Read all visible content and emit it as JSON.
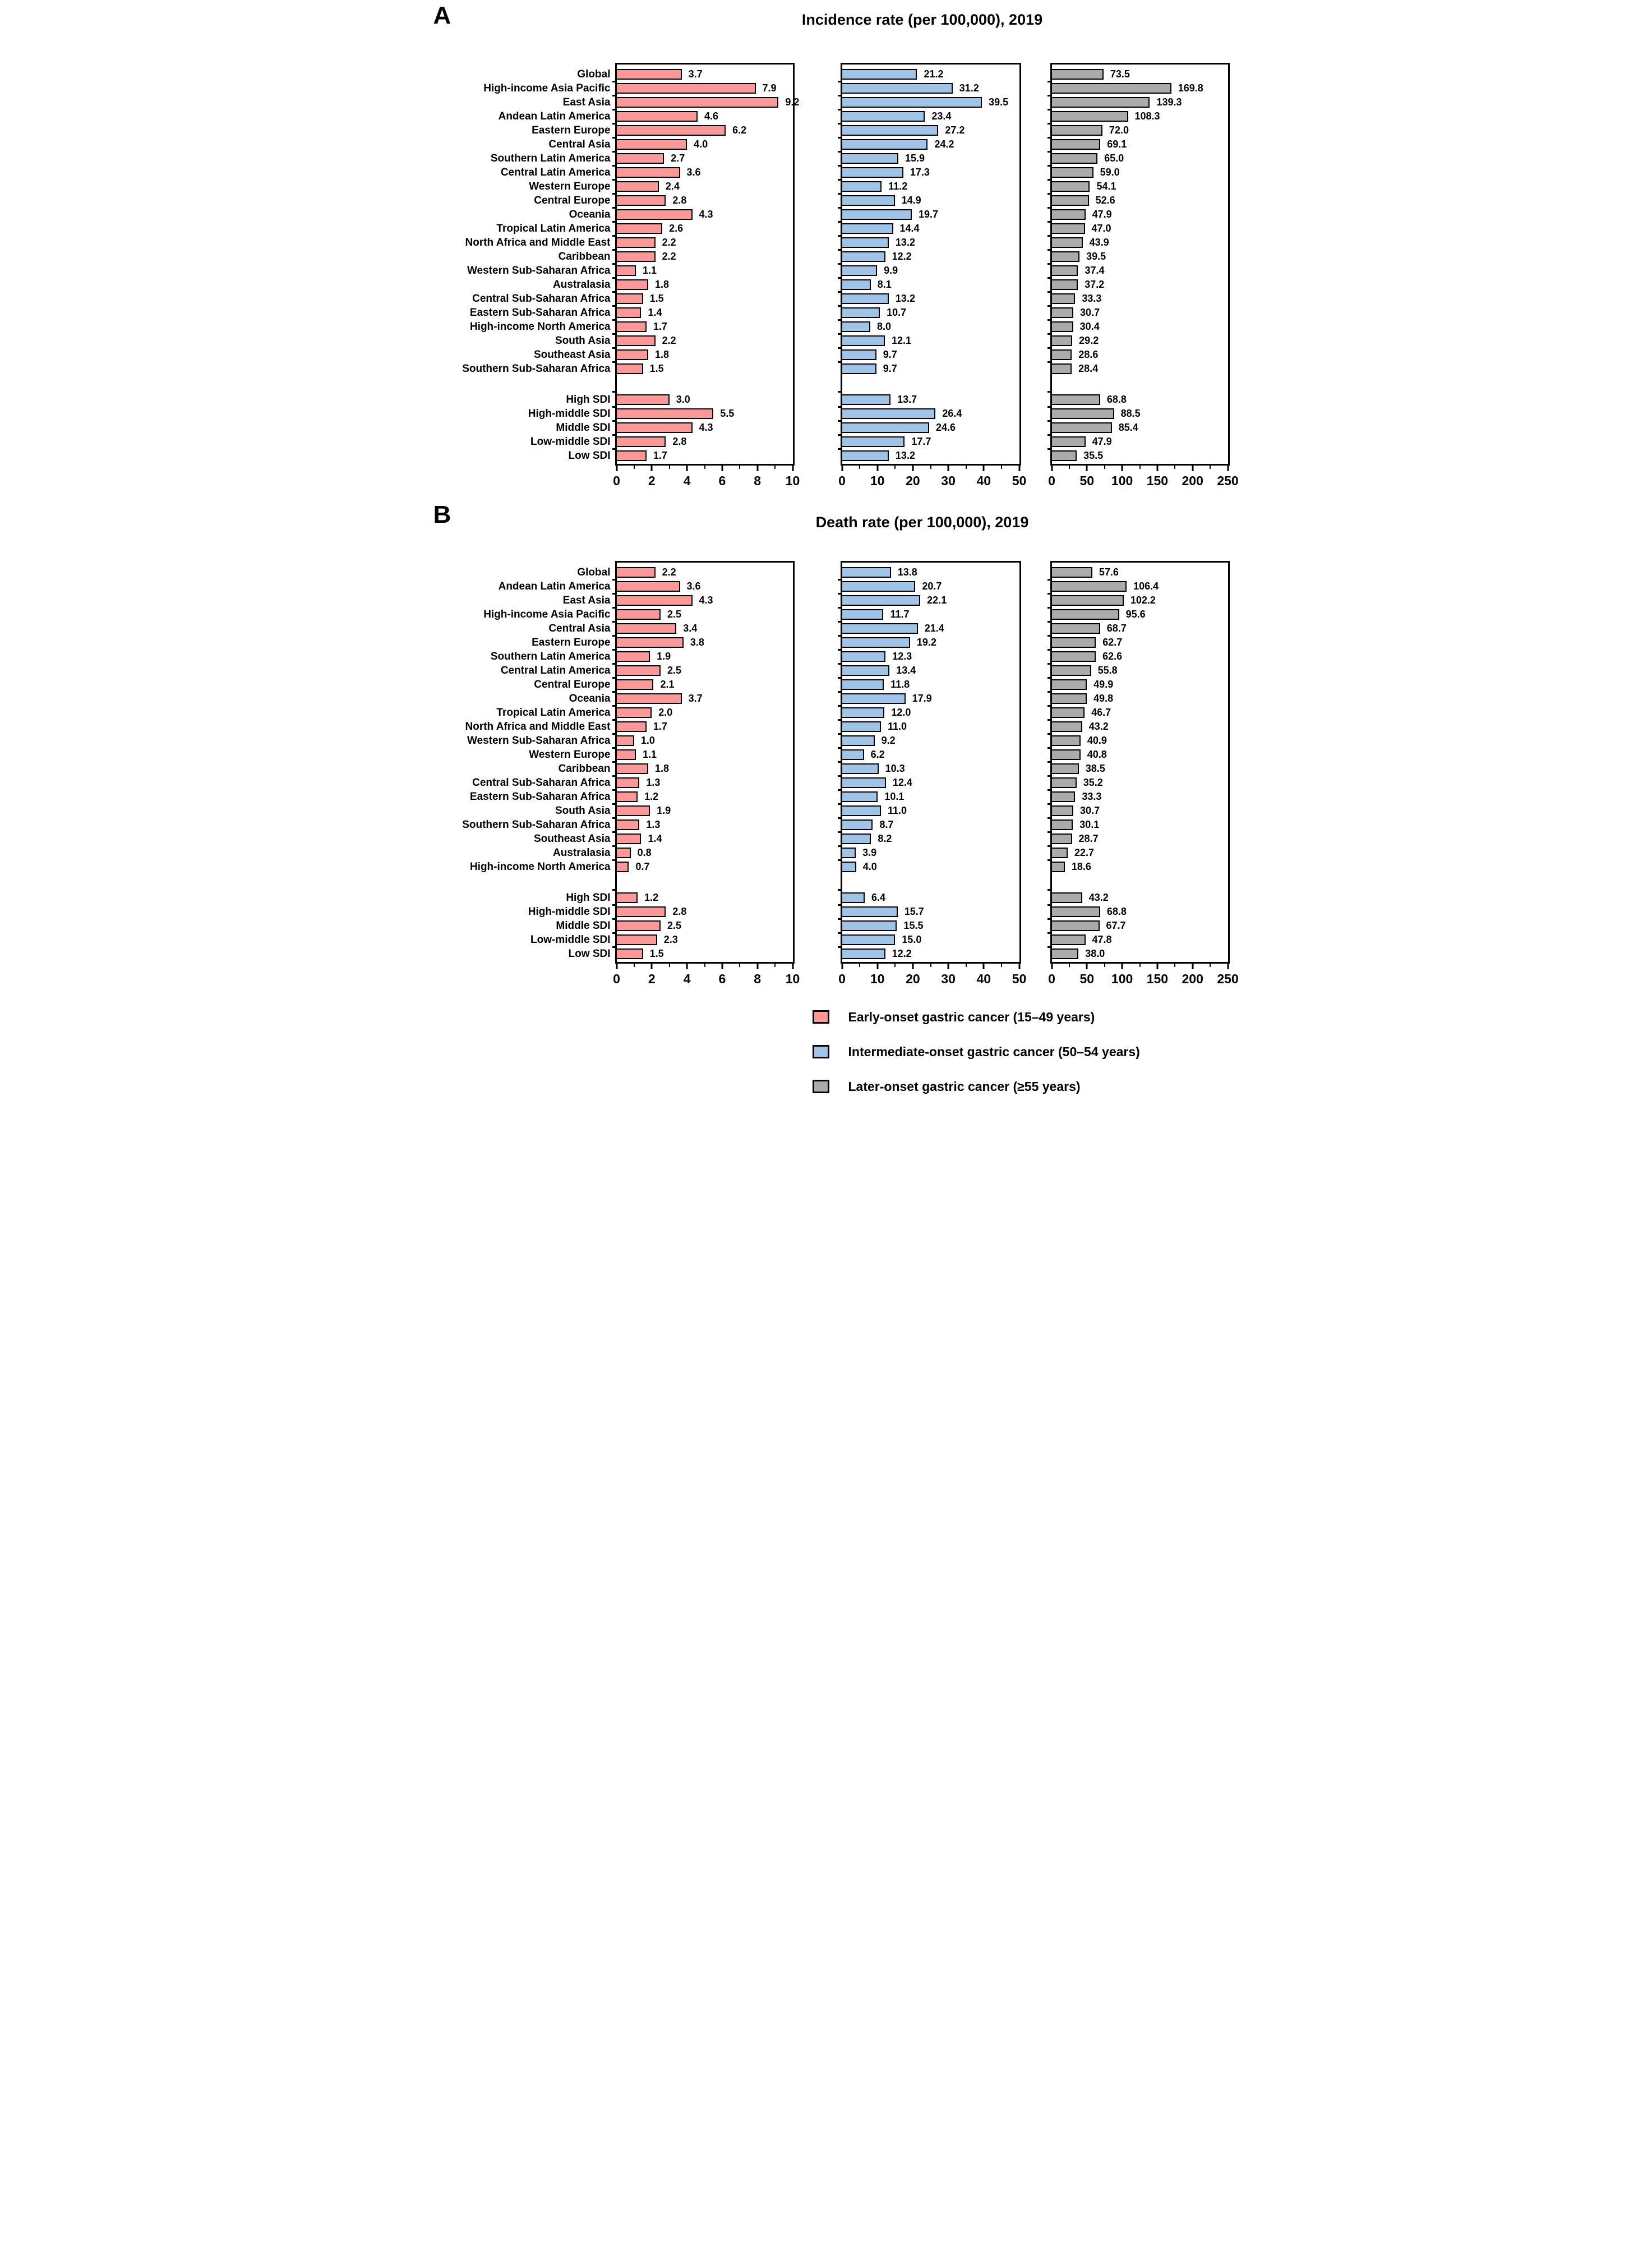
{
  "chart_data": [
    {
      "type": "bar",
      "orientation": "horizontal",
      "panel_label": "A",
      "title": "Incidence rate (per 100,000), 2019",
      "categories_regions": [
        "Global",
        "High-income Asia Pacific",
        "East Asia",
        "Andean Latin America",
        "Eastern Europe",
        "Central Asia",
        "Southern Latin America",
        "Central Latin America",
        "Western Europe",
        "Central Europe",
        "Oceania",
        "Tropical Latin America",
        "North Africa and Middle East",
        "Caribbean",
        "Western Sub-Saharan Africa",
        "Australasia",
        "Central Sub-Saharan Africa",
        "Eastern Sub-Saharan Africa",
        "High-income North America",
        "South Asia",
        "Southeast Asia",
        "Southern Sub-Saharan Africa"
      ],
      "categories_sdi": [
        "High SDI",
        "High-middle SDI",
        "Middle SDI",
        "Low-middle SDI",
        "Low SDI"
      ],
      "series": [
        {
          "name": "Early-onset gastric cancer (15–49 years)",
          "color": "#FD9899",
          "xlim": [
            0,
            10
          ],
          "ticks": [
            0,
            2,
            4,
            6,
            8,
            10
          ],
          "values_regions": [
            3.7,
            7.9,
            9.2,
            4.6,
            6.2,
            4.0,
            2.7,
            3.6,
            2.4,
            2.8,
            4.3,
            2.6,
            2.2,
            2.2,
            1.1,
            1.8,
            1.5,
            1.4,
            1.7,
            2.2,
            1.8,
            1.5
          ],
          "values_sdi": [
            3.0,
            5.5,
            4.3,
            2.8,
            1.7
          ]
        },
        {
          "name": "Intermediate-onset gastric cancer (50–54 years)",
          "color": "#9EC4E8",
          "xlim": [
            0,
            50
          ],
          "ticks": [
            0,
            10,
            20,
            30,
            40,
            50
          ],
          "values_regions": [
            21.2,
            31.2,
            39.5,
            23.4,
            27.2,
            24.2,
            15.9,
            17.3,
            11.2,
            14.9,
            19.7,
            14.4,
            13.2,
            12.2,
            9.9,
            8.1,
            13.2,
            10.7,
            8.0,
            12.1,
            9.7,
            9.7
          ],
          "values_sdi": [
            13.7,
            26.4,
            24.6,
            17.7,
            13.2
          ]
        },
        {
          "name": "Later-onset gastric cancer (≥55 years)",
          "color": "#ABABAB",
          "xlim": [
            0,
            250
          ],
          "ticks": [
            0,
            50,
            100,
            150,
            200,
            250
          ],
          "values_regions": [
            73.5,
            169.8,
            139.3,
            108.3,
            72.0,
            69.1,
            65.0,
            59.0,
            54.1,
            52.6,
            47.9,
            47.0,
            43.9,
            39.5,
            37.4,
            37.2,
            33.3,
            30.7,
            30.4,
            29.2,
            28.6,
            28.4
          ],
          "values_sdi": [
            68.8,
            88.5,
            85.4,
            47.9,
            35.5
          ]
        }
      ]
    },
    {
      "type": "bar",
      "orientation": "horizontal",
      "panel_label": "B",
      "title": "Death rate (per 100,000), 2019",
      "categories_regions": [
        "Global",
        "Andean Latin America",
        "East Asia",
        "High-income Asia Pacific",
        "Central Asia",
        "Eastern Europe",
        "Southern Latin America",
        "Central Latin America",
        "Central Europe",
        "Oceania",
        "Tropical Latin America",
        "North Africa and Middle East",
        "Western Sub-Saharan Africa",
        "Western Europe",
        "Caribbean",
        "Central Sub-Saharan Africa",
        "Eastern Sub-Saharan Africa",
        "South Asia",
        "Southern Sub-Saharan Africa",
        "Southeast Asia",
        "Australasia",
        "High-income North America"
      ],
      "categories_sdi": [
        "High SDI",
        "High-middle SDI",
        "Middle SDI",
        "Low-middle SDI",
        "Low SDI"
      ],
      "series": [
        {
          "name": "Early-onset gastric cancer (15–49 years)",
          "color": "#FD9899",
          "xlim": [
            0,
            10
          ],
          "ticks": [
            0,
            2,
            4,
            6,
            8,
            10
          ],
          "values_regions": [
            2.2,
            3.6,
            4.3,
            2.5,
            3.4,
            3.8,
            1.9,
            2.5,
            2.1,
            3.7,
            2.0,
            1.7,
            1.0,
            1.1,
            1.8,
            1.3,
            1.2,
            1.9,
            1.3,
            1.4,
            0.8,
            0.7
          ],
          "values_sdi": [
            1.2,
            2.8,
            2.5,
            2.3,
            1.5
          ]
        },
        {
          "name": "Intermediate-onset gastric cancer (50–54 years)",
          "color": "#9EC4E8",
          "xlim": [
            0,
            50
          ],
          "ticks": [
            0,
            10,
            20,
            30,
            40,
            50
          ],
          "values_regions": [
            13.8,
            20.7,
            22.1,
            11.7,
            21.4,
            19.2,
            12.3,
            13.4,
            11.8,
            17.9,
            12.0,
            11.0,
            9.2,
            6.2,
            10.3,
            12.4,
            10.1,
            11.0,
            8.7,
            8.2,
            3.9,
            4.0
          ],
          "values_sdi": [
            6.4,
            15.7,
            15.5,
            15.0,
            12.2
          ]
        },
        {
          "name": "Later-onset gastric cancer (≥55 years)",
          "color": "#ABABAB",
          "xlim": [
            0,
            250
          ],
          "ticks": [
            0,
            50,
            100,
            150,
            200,
            250
          ],
          "values_regions": [
            57.6,
            106.4,
            102.2,
            95.6,
            68.7,
            62.7,
            62.6,
            55.8,
            49.9,
            49.8,
            46.7,
            43.2,
            40.9,
            40.8,
            38.5,
            35.2,
            33.3,
            30.7,
            30.1,
            28.7,
            22.7,
            18.6
          ],
          "values_sdi": [
            43.2,
            68.8,
            67.7,
            47.8,
            38.0
          ]
        }
      ]
    }
  ],
  "legend": {
    "items": [
      {
        "label": "Early-onset gastric cancer (15–49 years)",
        "color": "#FD9899"
      },
      {
        "label": "Intermediate-onset gastric cancer (50–54 years)",
        "color": "#9EC4E8"
      },
      {
        "label": "Later-onset gastric cancer (≥55 years)",
        "color": "#ABABAB"
      }
    ]
  }
}
